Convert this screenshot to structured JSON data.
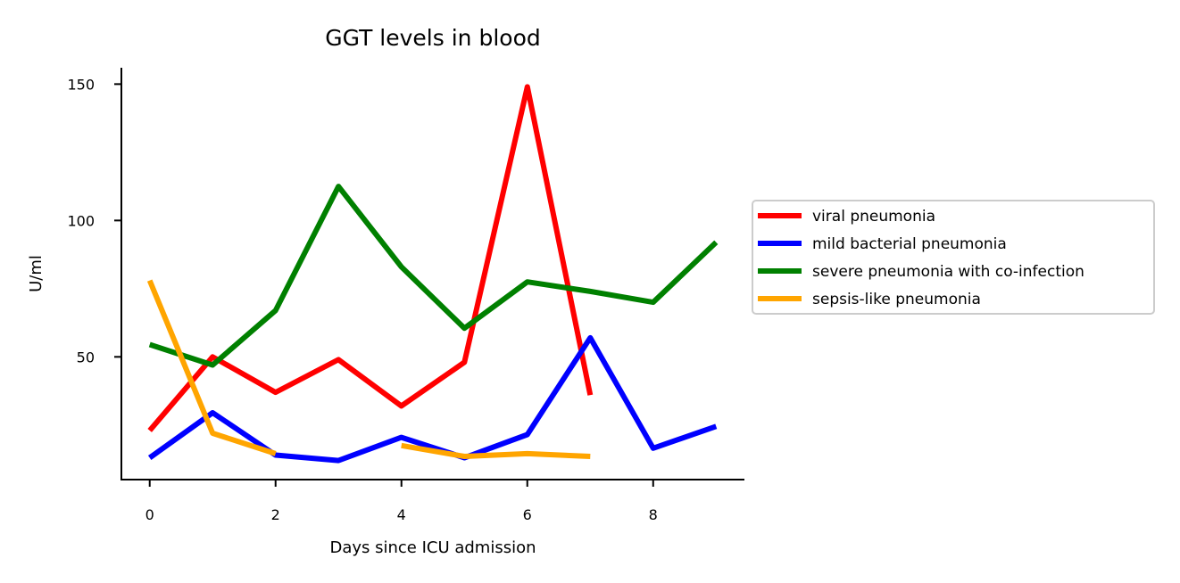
{
  "chart_data": {
    "type": "line",
    "title": "GGT levels in blood",
    "xlabel": "Days since ICU admission",
    "ylabel": "U/ml",
    "xlim": [
      -0.45,
      9.45
    ],
    "ylim": [
      5,
      156
    ],
    "xticks": [
      0,
      2,
      4,
      6,
      8
    ],
    "yticks": [
      50,
      100,
      150
    ],
    "grid": false,
    "legend_position": "center-right, outside plot",
    "series": [
      {
        "name": "viral pneumonia",
        "color": "#ff0000",
        "x": [
          0,
          1,
          2,
          3,
          4,
          5,
          6,
          7
        ],
        "y": [
          23,
          50,
          37,
          49,
          32,
          48,
          149,
          36
        ]
      },
      {
        "name": "mild bacterial pneumonia",
        "color": "#0000ff",
        "x": [
          0,
          1,
          2,
          3,
          4,
          5,
          6,
          7,
          8,
          9
        ],
        "y": [
          13,
          29.5,
          14,
          12,
          20.5,
          13,
          21.5,
          57,
          16.5,
          24.5
        ]
      },
      {
        "name": "severe pneumonia with co-infection",
        "color": "#008000",
        "x": [
          0,
          1,
          2,
          3,
          4,
          5,
          6,
          7,
          8,
          9
        ],
        "y": [
          54.5,
          47,
          67,
          112.5,
          83,
          60.5,
          77.5,
          74,
          70,
          92
        ]
      },
      {
        "name": "sepsis-like pneumonia",
        "color": "#ffa500",
        "segments": [
          {
            "x": [
              0,
              1,
              2
            ],
            "y": [
              78,
              22,
              14.5
            ]
          },
          {
            "x": [
              4,
              5,
              6,
              7
            ],
            "y": [
              17.5,
              13.5,
              14.5,
              13.5
            ]
          }
        ]
      }
    ]
  }
}
